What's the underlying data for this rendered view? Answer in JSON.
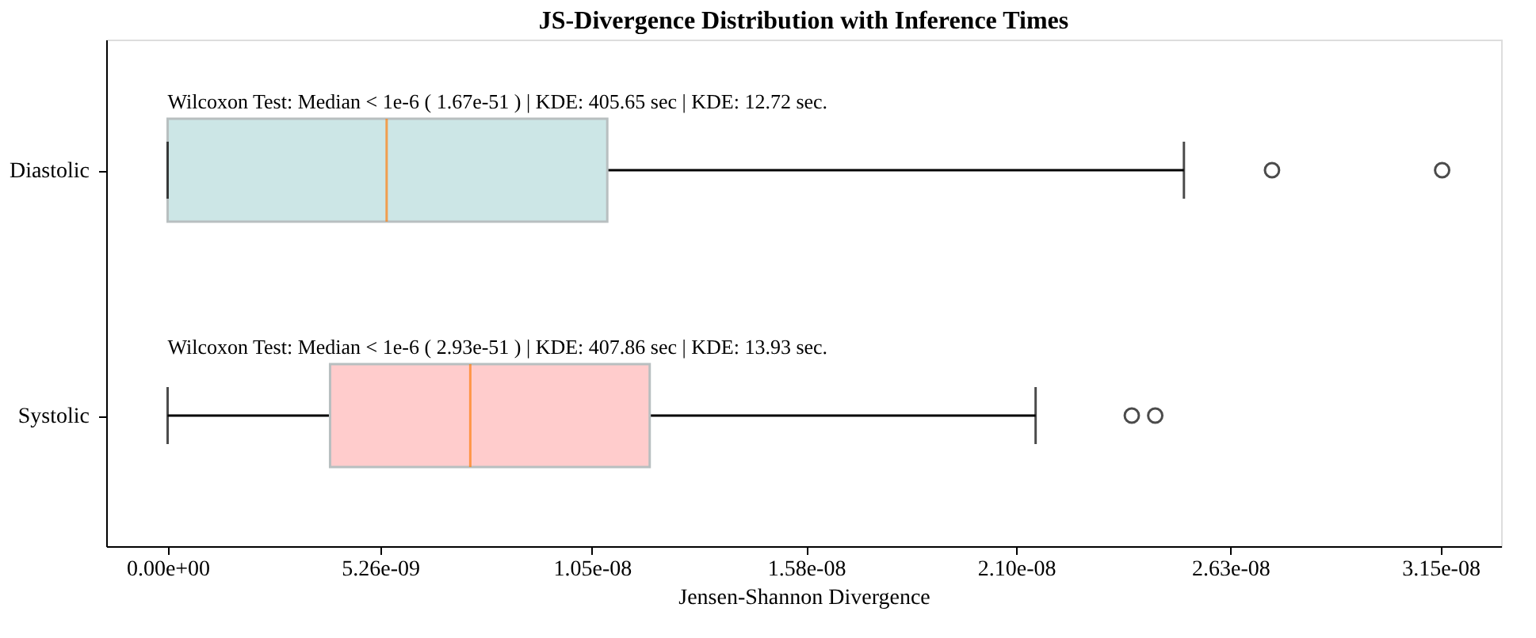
{
  "chart_data": {
    "type": "box",
    "title": "JS-Divergence Distribution with Inference Times",
    "xlabel": "Jensen-Shannon Divergence",
    "orientation": "horizontal",
    "categories": [
      "Diastolic",
      "Systolic"
    ],
    "series": [
      {
        "color": "#cce6e6",
        "boxes": [
          {
            "low": 0,
            "q1": 0,
            "median": 5.42e-09,
            "q3": 1.088e-08,
            "high": 2.515e-08,
            "outliers": [
              2.733e-08,
              3.154e-08
            ]
          },
          null
        ]
      },
      {
        "color": "#ffcccc",
        "boxes": [
          null,
          {
            "low": 0,
            "q1": 4.02e-09,
            "median": 7.49e-09,
            "q3": 1.193e-08,
            "high": 2.148e-08,
            "outliers": [
              2.386e-08,
              2.444e-08
            ]
          }
        ]
      }
    ],
    "xlim": [
      -1.52e-09,
      3.3e-08
    ],
    "xticks": [
      {
        "value": 0,
        "label": "0.00e+00"
      },
      {
        "value": 5.26e-09,
        "label": "5.26e-09"
      },
      {
        "value": 1.05e-08,
        "label": "1.05e-08"
      },
      {
        "value": 1.58e-08,
        "label": "1.58e-08"
      },
      {
        "value": 2.1e-08,
        "label": "2.10e-08"
      },
      {
        "value": 2.63e-08,
        "label": "2.63e-08"
      },
      {
        "value": 3.15e-08,
        "label": "3.15e-08"
      }
    ],
    "annotations": [
      {
        "text": "Wilcoxon Test: Median < 1e-6 ( 1.67e-51 ) | KDE: 405.65 sec | KDE: 12.72 sec.",
        "x": 0,
        "y": "Diastolic"
      },
      {
        "text": "Wilcoxon Test: Median < 1e-6 ( 2.93e-51 ) | KDE: 407.86 sec | KDE: 13.93 sec.",
        "x": 0,
        "y": "Systolic"
      }
    ],
    "grid": false
  }
}
